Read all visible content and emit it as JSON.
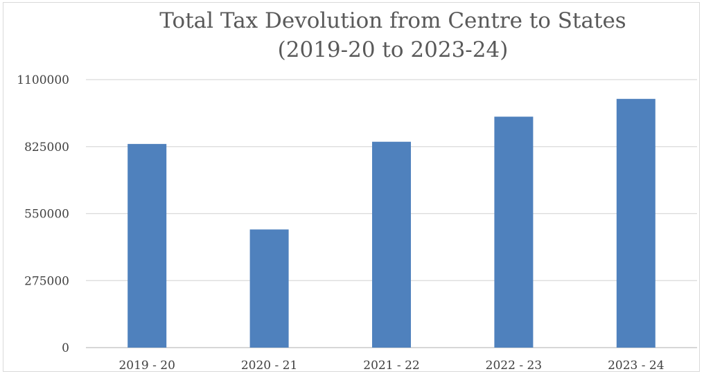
{
  "chart_data": {
    "type": "bar",
    "title": [
      "Total Tax Devolution from Centre to States",
      "(2019-20 to 2023-24)"
    ],
    "categories": [
      "2019 - 20",
      "2020 - 21",
      "2021 - 22",
      "2022 - 23",
      "2023 - 24"
    ],
    "series": [
      {
        "name": "Total Tax Devolution",
        "values": [
          836000,
          485000,
          845000,
          948000,
          1021000
        ]
      }
    ],
    "ylim": [
      0,
      1100000
    ],
    "yticks": [
      0,
      275000,
      550000,
      825000,
      1100000
    ],
    "xlabel": "",
    "ylabel": "",
    "grid": true,
    "legend": "none",
    "bar_color": "#4f81bd"
  }
}
